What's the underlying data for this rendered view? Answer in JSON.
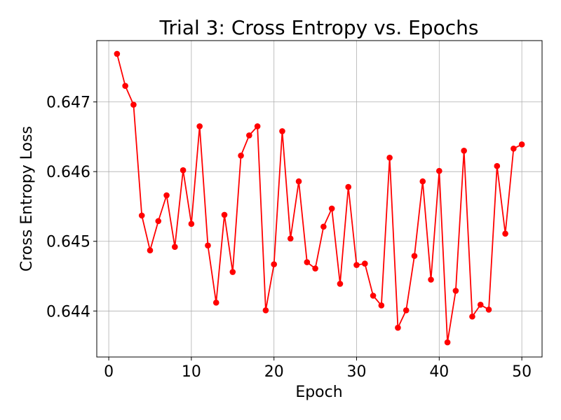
{
  "chart_data": {
    "type": "line",
    "title": "Trial 3: Cross Entropy vs. Epochs",
    "xlabel": "Epoch",
    "ylabel": "Cross Entropy Loss",
    "xlim": [
      -1.45,
      52.45
    ],
    "ylim": [
      0.64334,
      0.64788
    ],
    "xticks": [
      0,
      10,
      20,
      30,
      40,
      50
    ],
    "yticks": [
      0.644,
      0.645,
      0.646,
      0.647
    ],
    "xtick_labels": [
      "0",
      "10",
      "20",
      "30",
      "40",
      "50"
    ],
    "ytick_labels": [
      "0.644",
      "0.645",
      "0.646",
      "0.647"
    ],
    "grid": true,
    "series": [
      {
        "color": "#ff0000",
        "marker": "circle",
        "x": [
          1,
          2,
          3,
          4,
          5,
          6,
          7,
          8,
          9,
          10,
          11,
          12,
          13,
          14,
          15,
          16,
          17,
          18,
          19,
          20,
          21,
          22,
          23,
          24,
          25,
          26,
          27,
          28,
          29,
          30,
          31,
          32,
          33,
          34,
          35,
          36,
          37,
          38,
          39,
          40,
          41,
          42,
          43,
          44,
          45,
          46,
          47,
          48,
          49,
          50
        ],
        "y": [
          0.64769,
          0.64723,
          0.64696,
          0.64537,
          0.64487,
          0.64529,
          0.64566,
          0.64492,
          0.64602,
          0.64525,
          0.64665,
          0.64494,
          0.64412,
          0.64538,
          0.64456,
          0.64623,
          0.64652,
          0.64665,
          0.64401,
          0.64467,
          0.64658,
          0.64504,
          0.64586,
          0.6447,
          0.64461,
          0.64521,
          0.64547,
          0.64439,
          0.64578,
          0.64466,
          0.64468,
          0.64422,
          0.64408,
          0.6462,
          0.64376,
          0.64401,
          0.64479,
          0.64586,
          0.64445,
          0.64601,
          0.64355,
          0.64429,
          0.6463,
          0.64392,
          0.64409,
          0.64402,
          0.64608,
          0.64511,
          0.64633,
          0.64639
        ]
      }
    ]
  }
}
